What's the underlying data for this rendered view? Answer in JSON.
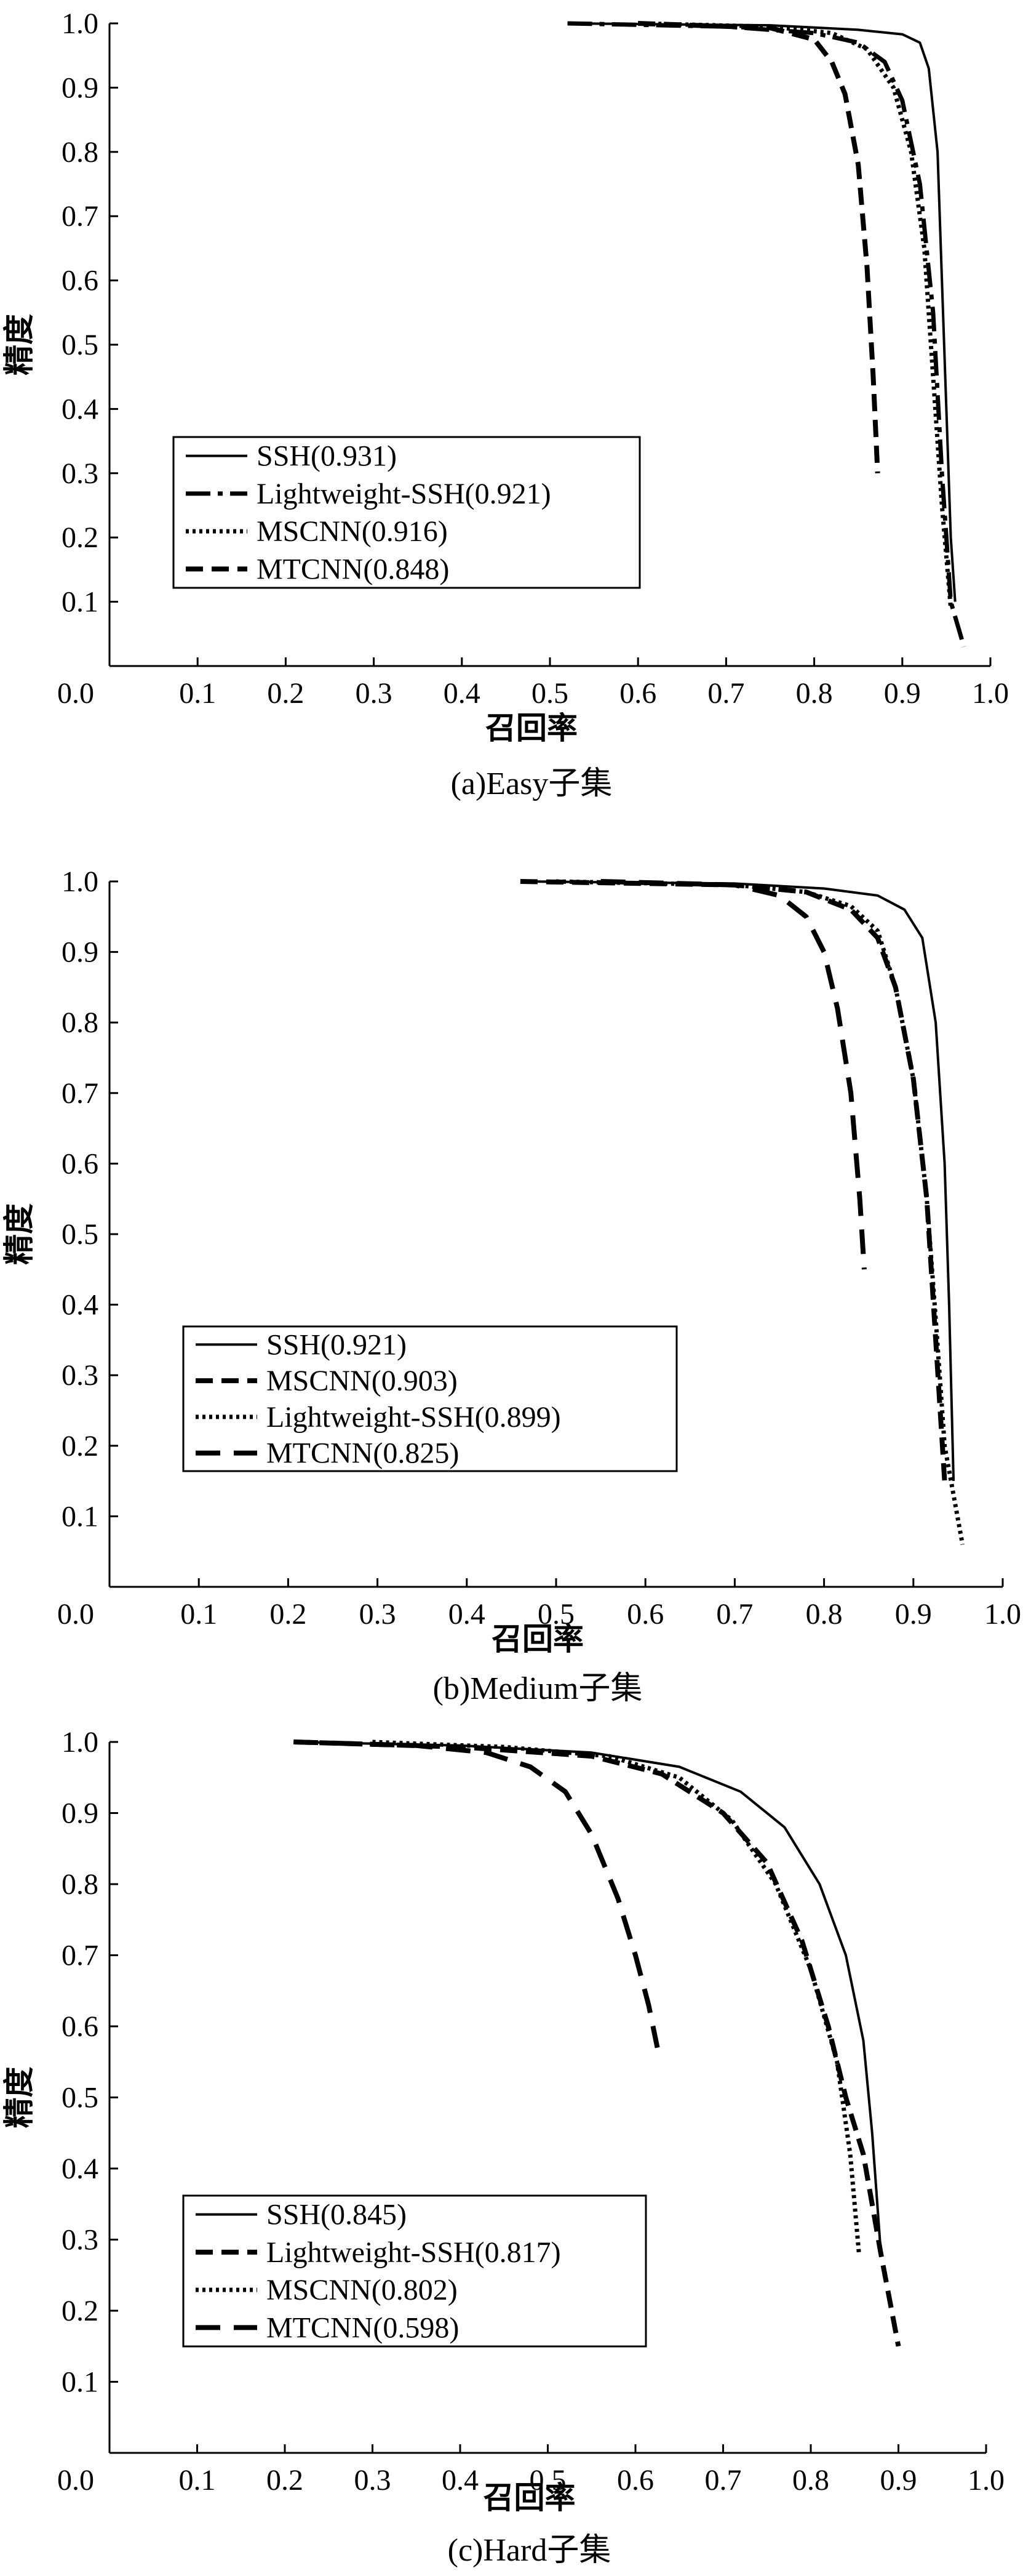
{
  "chart_data": [
    {
      "type": "line",
      "caption": "(a)Easy子集",
      "xlabel": "召回率",
      "ylabel": "精度",
      "xlim": [
        0,
        1
      ],
      "ylim": [
        0,
        1
      ],
      "x_ticks": [
        "0.0",
        "0.1",
        "0.2",
        "0.3",
        "0.4",
        "0.5",
        "0.6",
        "0.7",
        "0.8",
        "0.9",
        "1.0"
      ],
      "y_ticks": [
        "0.0",
        "0.1",
        "0.2",
        "0.3",
        "0.4",
        "0.5",
        "0.6",
        "0.7",
        "0.8",
        "0.9",
        "1.0"
      ],
      "legend_position": "bottom-left",
      "series": [
        {
          "name": "SSH(0.931)",
          "style": "solid",
          "points": [
            [
              0.52,
              1.0
            ],
            [
              0.75,
              0.997
            ],
            [
              0.85,
              0.99
            ],
            [
              0.9,
              0.983
            ],
            [
              0.92,
              0.97
            ],
            [
              0.93,
              0.93
            ],
            [
              0.94,
              0.8
            ],
            [
              0.945,
              0.6
            ],
            [
              0.95,
              0.4
            ],
            [
              0.955,
              0.2
            ],
            [
              0.96,
              0.1
            ]
          ]
        },
        {
          "name": "Lightweight-SSH(0.921)",
          "style": "dashdot",
          "points": [
            [
              0.52,
              1.0
            ],
            [
              0.7,
              0.995
            ],
            [
              0.8,
              0.985
            ],
            [
              0.85,
              0.97
            ],
            [
              0.88,
              0.94
            ],
            [
              0.9,
              0.88
            ],
            [
              0.92,
              0.75
            ],
            [
              0.935,
              0.55
            ],
            [
              0.945,
              0.3
            ],
            [
              0.955,
              0.1
            ],
            [
              0.97,
              0.03
            ]
          ]
        },
        {
          "name": "MSCNN(0.916)",
          "style": "dotted",
          "points": [
            [
              0.6,
              1.0
            ],
            [
              0.75,
              0.995
            ],
            [
              0.82,
              0.985
            ],
            [
              0.86,
              0.96
            ],
            [
              0.89,
              0.9
            ],
            [
              0.91,
              0.8
            ],
            [
              0.925,
              0.65
            ],
            [
              0.935,
              0.45
            ],
            [
              0.945,
              0.25
            ],
            [
              0.955,
              0.09
            ]
          ]
        },
        {
          "name": "MTCNN(0.848)",
          "style": "dashed",
          "points": [
            [
              0.6,
              1.0
            ],
            [
              0.75,
              0.993
            ],
            [
              0.8,
              0.975
            ],
            [
              0.82,
              0.94
            ],
            [
              0.835,
              0.89
            ],
            [
              0.85,
              0.78
            ],
            [
              0.86,
              0.62
            ],
            [
              0.867,
              0.45
            ],
            [
              0.872,
              0.3
            ]
          ]
        }
      ]
    },
    {
      "type": "line",
      "caption": "(b)Medium子集",
      "xlabel": "召回率",
      "ylabel": "精度",
      "xlim": [
        0,
        1
      ],
      "ylim": [
        0,
        1
      ],
      "x_ticks": [
        "0.0",
        "0.1",
        "0.2",
        "0.3",
        "0.4",
        "0.5",
        "0.6",
        "0.7",
        "0.8",
        "0.9",
        "1.0"
      ],
      "y_ticks": [
        "0.0",
        "0.1",
        "0.2",
        "0.3",
        "0.4",
        "0.5",
        "0.6",
        "0.7",
        "0.8",
        "0.9",
        "1.0"
      ],
      "legend_position": "bottom-left",
      "series": [
        {
          "name": "SSH(0.921)",
          "style": "solid",
          "points": [
            [
              0.46,
              1.0
            ],
            [
              0.7,
              0.997
            ],
            [
              0.8,
              0.99
            ],
            [
              0.86,
              0.98
            ],
            [
              0.89,
              0.96
            ],
            [
              0.91,
              0.92
            ],
            [
              0.925,
              0.8
            ],
            [
              0.935,
              0.6
            ],
            [
              0.94,
              0.4
            ],
            [
              0.945,
              0.15
            ]
          ]
        },
        {
          "name": "MSCNN(0.903)",
          "style": "dashed",
          "points": [
            [
              0.46,
              1.0
            ],
            [
              0.7,
              0.995
            ],
            [
              0.78,
              0.985
            ],
            [
              0.83,
              0.96
            ],
            [
              0.86,
              0.92
            ],
            [
              0.88,
              0.85
            ],
            [
              0.9,
              0.72
            ],
            [
              0.915,
              0.55
            ],
            [
              0.925,
              0.35
            ],
            [
              0.935,
              0.15
            ]
          ]
        },
        {
          "name": "Lightweight-SSH(0.899)",
          "style": "dotted",
          "points": [
            [
              0.5,
              1.0
            ],
            [
              0.7,
              0.995
            ],
            [
              0.78,
              0.985
            ],
            [
              0.83,
              0.965
            ],
            [
              0.86,
              0.93
            ],
            [
              0.88,
              0.85
            ],
            [
              0.9,
              0.72
            ],
            [
              0.915,
              0.55
            ],
            [
              0.925,
              0.38
            ],
            [
              0.935,
              0.2
            ],
            [
              0.955,
              0.06
            ]
          ]
        },
        {
          "name": "MTCNN(0.825)",
          "style": "dashed-long",
          "points": [
            [
              0.55,
              1.0
            ],
            [
              0.7,
              0.995
            ],
            [
              0.75,
              0.98
            ],
            [
              0.78,
              0.95
            ],
            [
              0.8,
              0.9
            ],
            [
              0.815,
              0.82
            ],
            [
              0.83,
              0.7
            ],
            [
              0.84,
              0.55
            ],
            [
              0.845,
              0.45
            ]
          ]
        }
      ]
    },
    {
      "type": "line",
      "caption": "(c)Hard子集",
      "xlabel": "召回率",
      "ylabel": "精度",
      "xlim": [
        0,
        1
      ],
      "ylim": [
        0,
        1
      ],
      "x_ticks": [
        "0.0",
        "0.1",
        "0.2",
        "0.3",
        "0.4",
        "0.5",
        "0.6",
        "0.7",
        "0.8",
        "0.9",
        "1.0"
      ],
      "y_ticks": [
        "0.0",
        "0.1",
        "0.2",
        "0.3",
        "0.4",
        "0.5",
        "0.6",
        "0.7",
        "0.8",
        "0.9",
        "1.0"
      ],
      "legend_position": "bottom-left",
      "series": [
        {
          "name": "SSH(0.845)",
          "style": "solid",
          "points": [
            [
              0.21,
              1.0
            ],
            [
              0.4,
              0.995
            ],
            [
              0.55,
              0.985
            ],
            [
              0.65,
              0.965
            ],
            [
              0.72,
              0.93
            ],
            [
              0.77,
              0.88
            ],
            [
              0.81,
              0.8
            ],
            [
              0.84,
              0.7
            ],
            [
              0.86,
              0.58
            ],
            [
              0.87,
              0.45
            ],
            [
              0.88,
              0.28
            ]
          ]
        },
        {
          "name": "Lightweight-SSH(0.817)",
          "style": "dashed",
          "points": [
            [
              0.21,
              1.0
            ],
            [
              0.4,
              0.993
            ],
            [
              0.55,
              0.98
            ],
            [
              0.63,
              0.955
            ],
            [
              0.7,
              0.9
            ],
            [
              0.75,
              0.83
            ],
            [
              0.79,
              0.72
            ],
            [
              0.82,
              0.6
            ],
            [
              0.84,
              0.5
            ],
            [
              0.86,
              0.42
            ],
            [
              0.88,
              0.28
            ],
            [
              0.9,
              0.15
            ]
          ]
        },
        {
          "name": "MSCNN(0.802)",
          "style": "dotted",
          "points": [
            [
              0.3,
              1.0
            ],
            [
              0.45,
              0.993
            ],
            [
              0.57,
              0.98
            ],
            [
              0.65,
              0.95
            ],
            [
              0.71,
              0.89
            ],
            [
              0.76,
              0.8
            ],
            [
              0.8,
              0.68
            ],
            [
              0.83,
              0.55
            ],
            [
              0.845,
              0.42
            ],
            [
              0.855,
              0.28
            ]
          ]
        },
        {
          "name": "MTCNN(0.598)",
          "style": "dashed-long",
          "points": [
            [
              0.21,
              1.0
            ],
            [
              0.35,
              0.995
            ],
            [
              0.43,
              0.985
            ],
            [
              0.48,
              0.965
            ],
            [
              0.52,
              0.93
            ],
            [
              0.55,
              0.87
            ],
            [
              0.58,
              0.78
            ],
            [
              0.6,
              0.7
            ],
            [
              0.615,
              0.63
            ],
            [
              0.625,
              0.57
            ]
          ]
        }
      ]
    }
  ]
}
